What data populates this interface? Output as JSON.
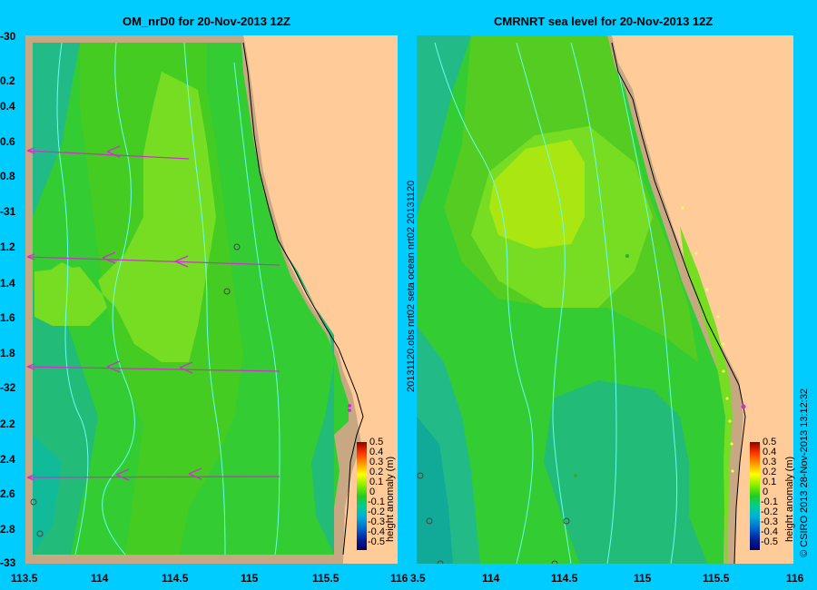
{
  "left_title": "OM_nrD0 for 20-Nov-2013 12Z",
  "right_title": "CMRNRT sea level  for 20-Nov-2013 12Z",
  "y_labels": [
    "-30",
    "0.2",
    "0.4",
    "0.6",
    "0.8",
    "-31",
    "1.2",
    "1.4",
    "1.6",
    "1.8",
    "-32",
    "2.2",
    "2.4",
    "2.6",
    "2.8",
    "-33"
  ],
  "x_labels": [
    "113.5",
    "114",
    "114.5",
    "115",
    "115.5",
    "116"
  ],
  "x_labels_right": [
    "3.5",
    "114",
    "114.5",
    "115",
    "115.5",
    "116"
  ],
  "colorbar": {
    "ticks": [
      "0.5",
      "0.4",
      "0.3",
      "0.2",
      "0.1",
      "0",
      "-0.1",
      "-0.2",
      "-0.3",
      "-0.4",
      "-0.5"
    ],
    "label": "height anomaly (m)"
  },
  "right_vertical_text": "20131120.obs  nrt02  seta     ocean  nrt02  20131120",
  "credit": "© CSIRO 2013   28-Nov-2013 13:12:32",
  "colors": {
    "background": "#00ccff",
    "land": "#ffcc99",
    "shelf": "#c8a882",
    "contour": "#66ffee",
    "arrow": "#cc33cc"
  }
}
